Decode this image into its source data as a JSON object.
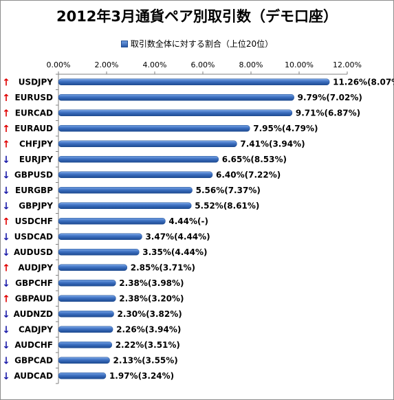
{
  "chart_data": {
    "type": "bar",
    "orientation": "horizontal",
    "title": "2012年3月通貨ペア別取引数（デモ口座）",
    "legend": {
      "position": "top",
      "label": "取引数全体に対する割合（上位20位）"
    },
    "xlim": [
      0,
      12
    ],
    "x_ticks": [
      "0.00%",
      "2.00%",
      "4.00%",
      "6.00%",
      "8.00%",
      "10.00%",
      "12.00%"
    ],
    "grid": false,
    "bar_color": "#2f62b0",
    "arrow_up_color": "#e00000",
    "arrow_down_color": "#1a1aa8",
    "categories": [
      "USDJPY",
      "EURUSD",
      "EURCAD",
      "EURAUD",
      "CHFJPY",
      "EURJPY",
      "GBPUSD",
      "EURGBP",
      "GBPJPY",
      "USDCHF",
      "USDCAD",
      "AUDUSD",
      "AUDJPY",
      "GBPCHF",
      "GBPAUD",
      "AUDNZD",
      "CADJPY",
      "AUDCHF",
      "GBPCAD",
      "AUDCAD"
    ],
    "trend_arrows": [
      "↑",
      "↑",
      "↑",
      "↑",
      "↑",
      "↓",
      "↓",
      "↓",
      "↓",
      "↑",
      "↓",
      "↓",
      "↑",
      "↓",
      "↑",
      "↓",
      "↓",
      "↓",
      "↓",
      "↓"
    ],
    "values": [
      11.26,
      9.79,
      9.71,
      7.95,
      7.41,
      6.65,
      6.4,
      5.56,
      5.52,
      4.44,
      3.47,
      3.35,
      2.85,
      2.38,
      2.38,
      2.3,
      2.26,
      2.22,
      2.13,
      1.97
    ],
    "data_labels": [
      "11.26%(8.07%)",
      "9.79%(7.02%)",
      "9.71%(6.87%)",
      "7.95%(4.79%)",
      "7.41%(3.94%)",
      "6.65%(8.53%)",
      "6.40%(7.22%)",
      "5.56%(7.37%)",
      "5.52%(8.61%)",
      "4.44%(-)",
      "3.47%(4.44%)",
      "3.35%(4.44%)",
      "2.85%(3.71%)",
      "2.38%(3.98%)",
      "2.38%(3.20%)",
      "2.30%(3.82%)",
      "2.26%(3.94%)",
      "2.22%(3.51%)",
      "2.13%(3.55%)",
      "1.97%(3.24%)"
    ]
  }
}
